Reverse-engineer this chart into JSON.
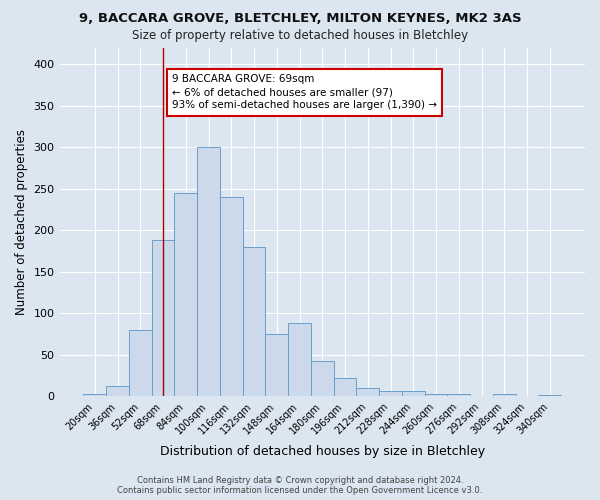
{
  "title1": "9, BACCARA GROVE, BLETCHLEY, MILTON KEYNES, MK2 3AS",
  "title2": "Size of property relative to detached houses in Bletchley",
  "xlabel": "Distribution of detached houses by size in Bletchley",
  "ylabel": "Number of detached properties",
  "categories": [
    "20sqm",
    "36sqm",
    "52sqm",
    "68sqm",
    "84sqm",
    "100sqm",
    "116sqm",
    "132sqm",
    "148sqm",
    "164sqm",
    "180sqm",
    "196sqm",
    "212sqm",
    "228sqm",
    "244sqm",
    "260sqm",
    "276sqm",
    "292sqm",
    "308sqm",
    "324sqm",
    "340sqm"
  ],
  "bar_heights": [
    3,
    13,
    80,
    188,
    245,
    300,
    240,
    180,
    75,
    88,
    43,
    22,
    10,
    6,
    6,
    3,
    3,
    1,
    3,
    1,
    2
  ],
  "bar_color": "#ccd9ea",
  "bar_edge_color": "#6b9ec8",
  "background_color": "#dce6f0",
  "plot_bg_color": "#dce6f0",
  "grid_color": "#ffffff",
  "red_line_index": 3,
  "annotation_text": "9 BACCARA GROVE: 69sqm\n← 6% of detached houses are smaller (97)\n93% of semi-detached houses are larger (1,390) →",
  "annotation_box_color": "#ffffff",
  "annotation_box_edge": "#cc0000",
  "red_line_color": "#aa0000",
  "footer_line1": "Contains HM Land Registry data © Crown copyright and database right 2024.",
  "footer_line2": "Contains public sector information licensed under the Open Government Licence v3.0.",
  "ylim": [
    0,
    420
  ],
  "yticks": [
    0,
    50,
    100,
    150,
    200,
    250,
    300,
    350,
    400
  ]
}
